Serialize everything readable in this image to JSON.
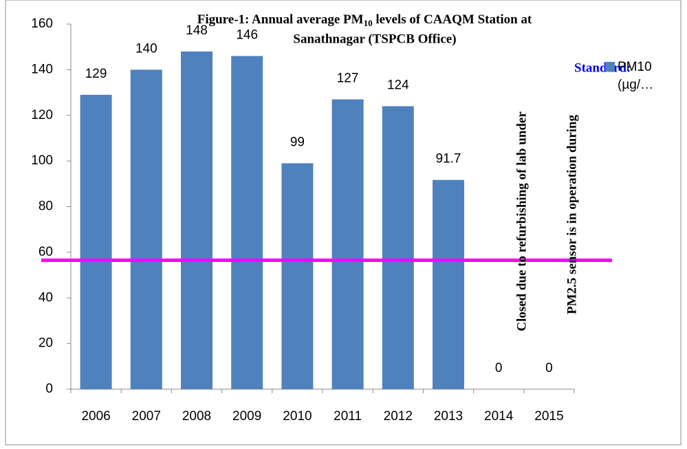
{
  "chart_data": {
    "type": "bar",
    "title": {
      "parts": [
        "Figure-1: Annual average PM",
        "10",
        " levels of  CAAQM Station at",
        "Sanathnagar (TSPCB Office)"
      ]
    },
    "categories": [
      "2006",
      "2007",
      "2008",
      "2009",
      "2010",
      "2011",
      "2012",
      "2013",
      "2014",
      "2015"
    ],
    "series": [
      {
        "name": "PM10 (µg/…",
        "color": "#4f81bd",
        "values": [
          129,
          140,
          148,
          146,
          99,
          127,
          124,
          91.7,
          0,
          0
        ]
      }
    ],
    "ylim": [
      0,
      160
    ],
    "yticks": [
      0,
      20,
      40,
      60,
      80,
      100,
      120,
      140,
      160
    ],
    "standard": {
      "label": "Standard:",
      "value": 56.5,
      "color": "#ff00ff"
    },
    "annotations": [
      "Closed due to refurbishing of lab under",
      "PM2.5 sensor is in operation during"
    ],
    "legend": "right"
  }
}
